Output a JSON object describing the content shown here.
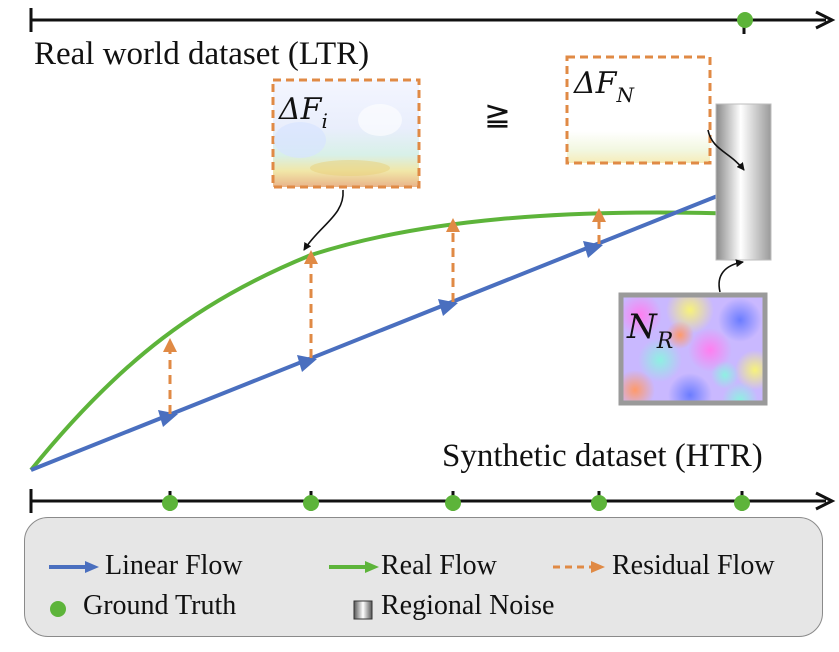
{
  "titles": {
    "real": "Real world dataset (LTR)",
    "synthetic": "Synthetic dataset (HTR)"
  },
  "math": {
    "delta_fi_base": "ΔF",
    "delta_fi_sub": "i",
    "geq": "≧",
    "delta_fn_base": "ΔF",
    "delta_fn_sub": "N",
    "nr_base": "N",
    "nr_sub": "R"
  },
  "legend": {
    "linear_flow": "Linear Flow",
    "real_flow": "Real Flow",
    "residual_flow": "Residual Flow",
    "ground_truth": "Ground Truth",
    "regional_noise": "Regional Noise"
  },
  "colors": {
    "linear": "#4a6fbf",
    "real": "#5db43a",
    "residual": "#e08a45",
    "ground_truth": "#5db43a",
    "panel_border_dashed": "#e08a45",
    "panel_border_solid": "#9a9a9a"
  }
}
